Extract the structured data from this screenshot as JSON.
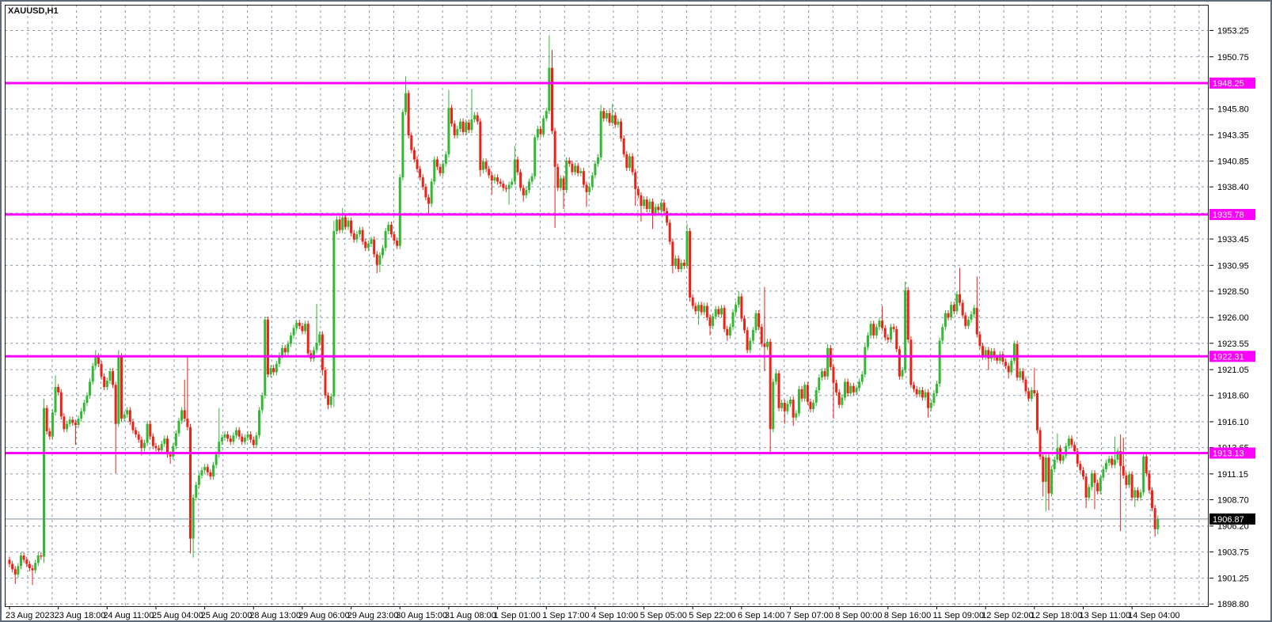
{
  "window": {
    "title": "XAUUSD,H1"
  },
  "chart_data": {
    "type": "candlestick",
    "title": "XAUUSD,H1",
    "symbol": "XAUUSD",
    "timeframe": "H1",
    "x_axis": {
      "labels": [
        "23 Aug 2023",
        "23 Aug 18:00",
        "24 Aug 11:00",
        "25 Aug 04:00",
        "25 Aug 20:00",
        "28 Aug 13:00",
        "29 Aug 06:00",
        "29 Aug 23:00",
        "30 Aug 15:00",
        "31 Aug 08:00",
        "1 Sep 01:00",
        "1 Sep 17:00",
        "4 Sep 10:00",
        "5 Sep 05:00",
        "5 Sep 22:00",
        "6 Sep 14:00",
        "7 Sep 07:00",
        "8 Sep 00:00",
        "8 Sep 16:00",
        "11 Sep 09:00",
        "12 Sep 02:00",
        "12 Sep 18:00",
        "13 Sep 11:00",
        "14 Sep 04:00"
      ],
      "candles_per_label": 17
    },
    "y_axis": {
      "tick_values": [
        1953.25,
        1950.75,
        1948.3,
        1945.8,
        1943.35,
        1940.85,
        1938.4,
        1935.9,
        1933.45,
        1930.95,
        1928.5,
        1926.0,
        1923.55,
        1921.05,
        1918.6,
        1916.1,
        1913.65,
        1911.15,
        1908.7,
        1906.2,
        1903.75,
        1901.25,
        1898.8
      ],
      "tick_labels": [
        "1953.25",
        "1950.75",
        "",
        "1945.80",
        "1943.35",
        "1940.85",
        "1938.40",
        "",
        "1933.45",
        "1930.95",
        "1928.50",
        "1926.00",
        "1923.55",
        "1921.05",
        "1918.60",
        "1916.10",
        "1913.65",
        "1911.15",
        "1908.70",
        "1906.20",
        "1903.75",
        "1901.25",
        "1898.80"
      ]
    },
    "horizontal_lines": [
      {
        "price": 1948.25,
        "label": "1948.25"
      },
      {
        "price": 1935.78,
        "label": "1935.78"
      },
      {
        "price": 1922.31,
        "label": "1922.31"
      },
      {
        "price": 1913.13,
        "label": "1913.13"
      }
    ],
    "current_price": {
      "price": 1906.87,
      "label": "1906.87"
    },
    "candles": {
      "first_open": 1903.0,
      "closes": [
        1902.6,
        1902.1,
        1901.6,
        1902.4,
        1903.4,
        1903.0,
        1902.6,
        1902.2,
        1902.0,
        1902.7,
        1903.4,
        1903.3,
        1917.4,
        1915.2,
        1914.7,
        1917.0,
        1919.4,
        1918.9,
        1916.6,
        1915.4,
        1915.9,
        1916.3,
        1916.0,
        1915.8,
        1916.4,
        1917.1,
        1917.9,
        1918.6,
        1919.9,
        1921.4,
        1922.3,
        1921.6,
        1920.4,
        1919.4,
        1920.0,
        1920.9,
        1919.6,
        1915.9,
        1922.3,
        1916.4,
        1916.8,
        1917.2,
        1916.1,
        1915.3,
        1914.9,
        1914.4,
        1913.6,
        1914.1,
        1915.9,
        1914.7,
        1913.8,
        1913.6,
        1913.4,
        1914.0,
        1914.5,
        1913.0,
        1912.8,
        1913.8,
        1915.0,
        1916.2,
        1917.2,
        1916.4,
        1915.6,
        1905.0,
        1908.9,
        1910.1,
        1911.0,
        1911.5,
        1911.8,
        1911.3,
        1910.9,
        1912.0,
        1913.0,
        1914.2,
        1914.6,
        1914.9,
        1914.5,
        1914.2,
        1914.8,
        1915.3,
        1914.7,
        1914.2,
        1914.6,
        1914.9,
        1914.4,
        1913.9,
        1914.8,
        1917.2,
        1918.6,
        1925.8,
        1920.6,
        1921.2,
        1920.8,
        1921.6,
        1922.4,
        1923.1,
        1922.7,
        1923.5,
        1924.3,
        1925.0,
        1925.5,
        1925.2,
        1924.7,
        1925.4,
        1922.6,
        1922.1,
        1922.9,
        1923.6,
        1924.4,
        1921.0,
        1918.6,
        1917.7,
        1918.5,
        1934.2,
        1935.3,
        1934.3,
        1935.5,
        1934.6,
        1935.2,
        1934.0,
        1933.4,
        1933.9,
        1934.3,
        1933.2,
        1932.6,
        1933.0,
        1933.4,
        1932.0,
        1931.0,
        1931.9,
        1932.6,
        1934.2,
        1934.8,
        1933.9,
        1933.3,
        1932.8,
        1939.3,
        1945.5,
        1947.3,
        1943.3,
        1941.9,
        1941.0,
        1940.1,
        1939.3,
        1938.4,
        1937.4,
        1936.8,
        1938.9,
        1941.0,
        1940.3,
        1939.7,
        1940.6,
        1941.5,
        1945.9,
        1944.4,
        1943.3,
        1943.9,
        1944.6,
        1943.6,
        1944.5,
        1943.8,
        1944.8,
        1945.2,
        1944.6,
        1940.0,
        1940.8,
        1940.1,
        1939.5,
        1939.0,
        1939.3,
        1938.9,
        1938.7,
        1938.3,
        1938.2,
        1938.6,
        1938.9,
        1941.0,
        1939.8,
        1938.3,
        1937.6,
        1938.1,
        1938.9,
        1939.4,
        1943.1,
        1943.9,
        1943.4,
        1944.9,
        1945.6,
        1949.7,
        1943.7,
        1940.3,
        1938.3,
        1939.2,
        1938.1,
        1940.9,
        1940.6,
        1939.8,
        1940.4,
        1939.7,
        1939.9,
        1938.6,
        1937.9,
        1938.4,
        1939.5,
        1940.6,
        1941.2,
        1945.6,
        1944.9,
        1945.4,
        1944.5,
        1945.2,
        1944.3,
        1944.6,
        1943.0,
        1941.5,
        1940.2,
        1941.3,
        1939.8,
        1938.2,
        1937.6,
        1936.6,
        1937.2,
        1936.3,
        1937.0,
        1935.9,
        1936.5,
        1936.2,
        1936.9,
        1936.1,
        1935.0,
        1933.2,
        1930.9,
        1931.6,
        1930.6,
        1931.2,
        1930.9,
        1934.2,
        1927.9,
        1927.1,
        1926.6,
        1927.2,
        1926.5,
        1927.1,
        1926.0,
        1925.2,
        1926.1,
        1926.8,
        1926.3,
        1926.9,
        1924.9,
        1924.3,
        1925.1,
        1926.5,
        1927.2,
        1928.0,
        1925.9,
        1924.8,
        1922.9,
        1923.8,
        1924.8,
        1926.4,
        1925.1,
        1923.5,
        1923.2,
        1923.7,
        1915.4,
        1919.9,
        1920.7,
        1917.4,
        1917.9,
        1917.1,
        1917.8,
        1918.2,
        1916.5,
        1916.9,
        1919.2,
        1918.3,
        1919.6,
        1918.0,
        1917.3,
        1917.9,
        1919.1,
        1920.3,
        1920.9,
        1920.4,
        1923.1,
        1921.3,
        1919.8,
        1918.9,
        1917.7,
        1918.4,
        1919.9,
        1918.8,
        1919.5,
        1918.9,
        1919.3,
        1919.9,
        1920.6,
        1923.2,
        1924.3,
        1925.4,
        1924.3,
        1925.1,
        1925.7,
        1925.0,
        1924.1,
        1923.9,
        1925.1,
        1924.9,
        1923.0,
        1920.4,
        1921.0,
        1928.6,
        1923.9,
        1919.6,
        1919.2,
        1918.7,
        1919.1,
        1918.4,
        1918.9,
        1917.4,
        1917.9,
        1918.8,
        1919.7,
        1923.8,
        1925.1,
        1926.4,
        1926.0,
        1927.2,
        1926.6,
        1928.2,
        1927.4,
        1926.2,
        1925.2,
        1925.8,
        1926.3,
        1926.9,
        1924.4,
        1923.3,
        1922.3,
        1922.9,
        1922.1,
        1922.8,
        1922.2,
        1921.9,
        1922.5,
        1921.8,
        1921.4,
        1920.8,
        1921.9,
        1923.5,
        1920.3,
        1920.9,
        1920.1,
        1919.0,
        1918.3,
        1919.1,
        1918.8,
        1915.3,
        1912.8,
        1910.4,
        1912.7,
        1909.3,
        1911.6,
        1912.5,
        1913.6,
        1912.4,
        1912.9,
        1913.8,
        1914.5,
        1913.9,
        1913.3,
        1912.1,
        1911.5,
        1910.9,
        1908.9,
        1909.9,
        1911.2,
        1910.3,
        1909.5,
        1910.8,
        1911.6,
        1912.2,
        1912.6,
        1912.0,
        1912.5,
        1913.3,
        1911.9,
        1911.0,
        1910.1,
        1911.1,
        1908.9,
        1909.6,
        1908.9,
        1909.4,
        1912.8,
        1911.2,
        1909.6,
        1907.9,
        1905.9,
        1906.9
      ],
      "wicks": {
        "2": [
          null,
          1900.7
        ],
        "8": [
          null,
          1900.6
        ],
        "12": [
          1918.3,
          1902.7
        ],
        "16": [
          1920.5,
          null
        ],
        "23": [
          null,
          1913.9
        ],
        "30": [
          1922.9,
          null
        ],
        "37": [
          null,
          1911.2
        ],
        "38": [
          1922.9,
          null
        ],
        "46": [
          null,
          1912.9
        ],
        "56": [
          null,
          1912.1
        ],
        "61": [
          1920.1,
          null
        ],
        "62": [
          1922.3,
          null
        ],
        "63": [
          null,
          1903.6
        ],
        "64": [
          null,
          1903.2
        ],
        "73": [
          1917.4,
          null
        ],
        "89": [
          1926.1,
          null
        ],
        "107": [
          1927.3,
          null
        ],
        "109": [
          null,
          1920.5
        ],
        "111": [
          null,
          1917.3
        ],
        "113": [
          1935.2,
          1917.5
        ],
        "116": [
          1936.4,
          null
        ],
        "128": [
          null,
          1930.2
        ],
        "129": [
          null,
          1930.3
        ],
        "138": [
          1948.9,
          null
        ],
        "146": [
          null,
          1935.8
        ],
        "153": [
          1947.6,
          null
        ],
        "161": [
          1947.7,
          null
        ],
        "164": [
          null,
          1939.4
        ],
        "168": [
          null,
          1937.7
        ],
        "174": [
          null,
          1936.7
        ],
        "176": [
          1942.3,
          null
        ],
        "179": [
          null,
          1937.0
        ],
        "188": [
          1952.8,
          null
        ],
        "189": [
          1951.4,
          null
        ],
        "190": [
          null,
          1934.5
        ],
        "193": [
          null,
          1936.3
        ],
        "201": [
          null,
          1936.5
        ],
        "206": [
          1946.2,
          null
        ],
        "210": [
          1946.3,
          null
        ],
        "218": [
          null,
          1936.6
        ],
        "220": [
          null,
          1935.1
        ],
        "224": [
          null,
          1934.4
        ],
        "231": [
          null,
          1930.2
        ],
        "236": [
          1934.9,
          null
        ],
        "237": [
          null,
          1927.5
        ],
        "240": [
          null,
          1925.3
        ],
        "244": [
          null,
          1924.3
        ],
        "250": [
          null,
          1923.8
        ],
        "254": [
          1928.5,
          null
        ],
        "263": [
          1928.9,
          1920.9
        ],
        "265": [
          null,
          1913.2
        ],
        "270": [
          null,
          1915.9
        ],
        "273": [
          null,
          1915.7
        ],
        "285": [
          1923.5,
          null
        ],
        "287": [
          null,
          1916.4
        ],
        "304": [
          1927.1,
          null
        ],
        "312": [
          1929.4,
          null
        ],
        "320": [
          null,
          1916.5
        ],
        "331": [
          1930.7,
          null
        ],
        "337": [
          1929.9,
          null
        ],
        "341": [
          null,
          1921.0
        ],
        "348": [
          null,
          1920.2
        ],
        "357": [
          1921.2,
          null
        ],
        "360": [
          null,
          1909.0
        ],
        "361": [
          null,
          1907.6
        ],
        "362": [
          null,
          1907.7
        ],
        "365": [
          1915.0,
          null
        ],
        "375": [
          null,
          1907.9
        ],
        "378": [
          null,
          1907.8
        ],
        "385": [
          1914.7,
          null
        ],
        "387": [
          1914.9,
          1905.7
        ],
        "388": [
          1914.6,
          null
        ],
        "392": [
          null,
          1908.0
        ],
        "399": [
          null,
          1905.2
        ],
        "400": [
          null,
          1905.4
        ]
      }
    },
    "colors": {
      "up": "#33b833",
      "down": "#ee2116",
      "grid": "#8b99ab",
      "level": "#ff00ff",
      "current_line": "#7a8a99",
      "current_badge_bg": "#000000",
      "level_badge_text": "#ffffff",
      "axis_text": "#000000",
      "plot_border": "#1a1a1a"
    },
    "legend_position": "none",
    "grid": true
  }
}
